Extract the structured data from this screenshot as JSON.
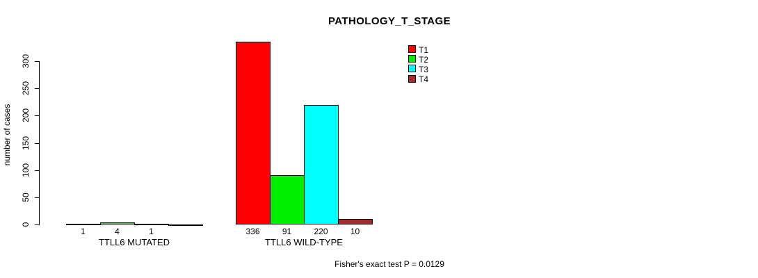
{
  "chart_data": {
    "type": "bar",
    "title": "PATHOLOGY_T_STAGE",
    "ylabel": "number of cases",
    "xlabel": "",
    "categories": [
      "TTLL6 MUTATED",
      "TTLL6 WILD-TYPE"
    ],
    "series": [
      {
        "name": "T1",
        "color": "#ff0000",
        "values": [
          1,
          336
        ]
      },
      {
        "name": "T2",
        "color": "#00ee00",
        "values": [
          4,
          91
        ]
      },
      {
        "name": "T3",
        "color": "#00ffff",
        "values": [
          1,
          220
        ]
      },
      {
        "name": "T4",
        "color": "#a52a2a",
        "values": [
          0,
          10
        ]
      }
    ],
    "value_labels": [
      [
        "1",
        "4",
        "1",
        ""
      ],
      [
        "336",
        "91",
        "220",
        "10"
      ]
    ],
    "yticks": [
      0,
      50,
      100,
      150,
      200,
      250,
      300
    ],
    "ylim": [
      0,
      345
    ],
    "grid": false,
    "legend_position": "top-right-inside",
    "legend_entries": [
      "T1",
      "T2",
      "T3",
      "T4"
    ],
    "annotation": "Fisher's exact test P = 0.0129"
  }
}
